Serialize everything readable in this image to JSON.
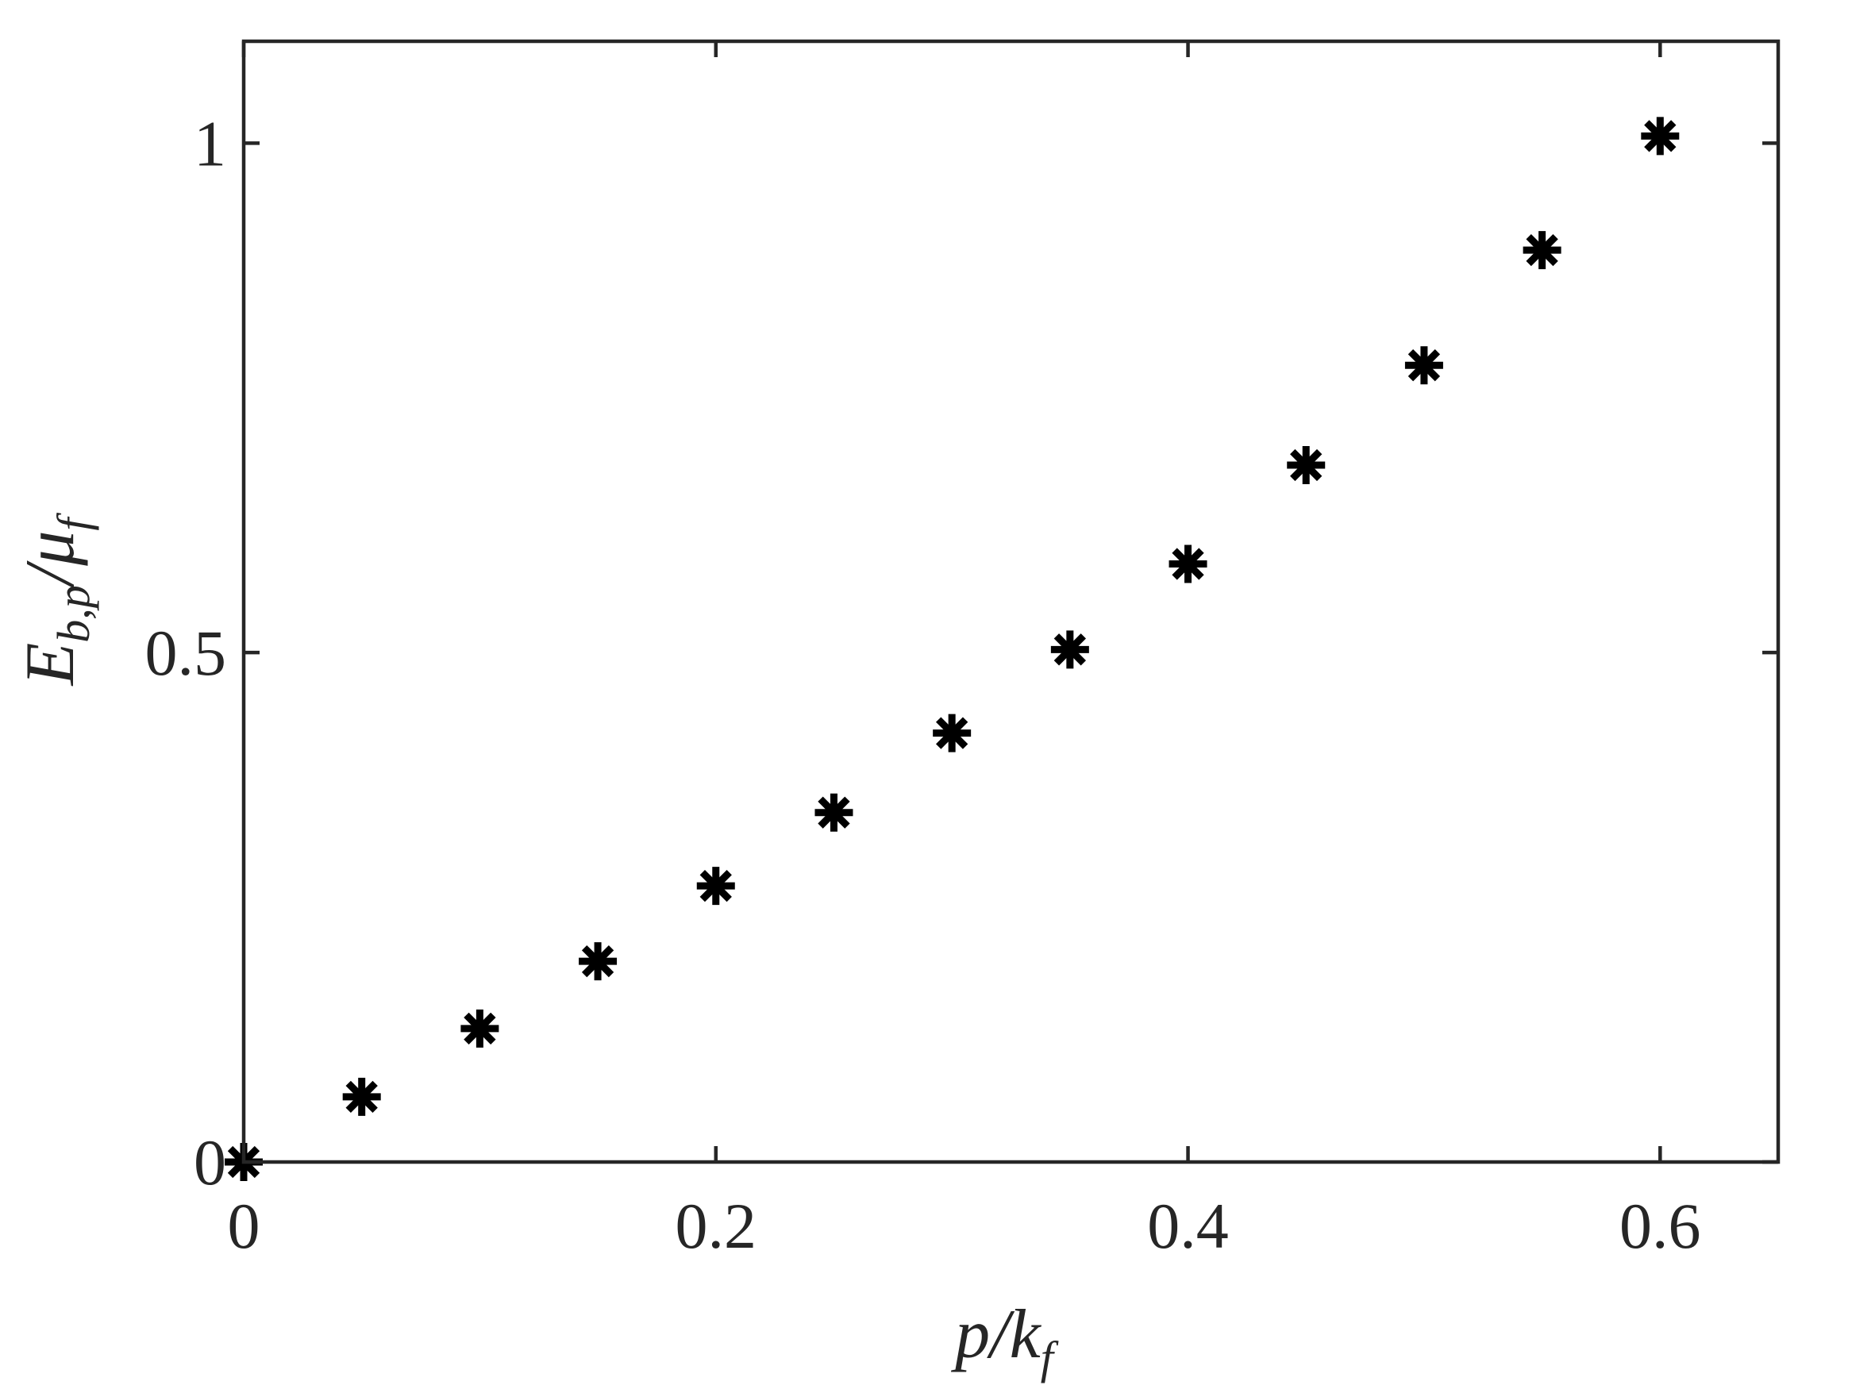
{
  "chart_data": {
    "type": "scatter",
    "title": "",
    "xlabel": {
      "base": "p/k",
      "sub": "f"
    },
    "ylabel": {
      "base": "E",
      "sub": "b,p",
      "mid": "/μ",
      "sub2": "f"
    },
    "xlim": [
      0,
      0.65
    ],
    "ylim": [
      0,
      1.1
    ],
    "xticks": [
      0,
      0.2,
      0.4,
      0.6
    ],
    "xtick_labels": [
      "0",
      "0.2",
      "0.4",
      "0.6"
    ],
    "yticks": [
      0,
      0.5,
      1
    ],
    "ytick_labels": [
      "0",
      "0.5",
      "1"
    ],
    "grid": false,
    "marker": "asterisk",
    "marker_color": "#000000",
    "series": [
      {
        "x": [
          0,
          0.05,
          0.1,
          0.15,
          0.2,
          0.25,
          0.3,
          0.35,
          0.4,
          0.45,
          0.5,
          0.55,
          0.6
        ],
        "y": [
          0,
          0.064,
          0.131,
          0.197,
          0.271,
          0.343,
          0.421,
          0.503,
          0.587,
          0.684,
          0.782,
          0.895,
          1.007
        ]
      }
    ]
  }
}
